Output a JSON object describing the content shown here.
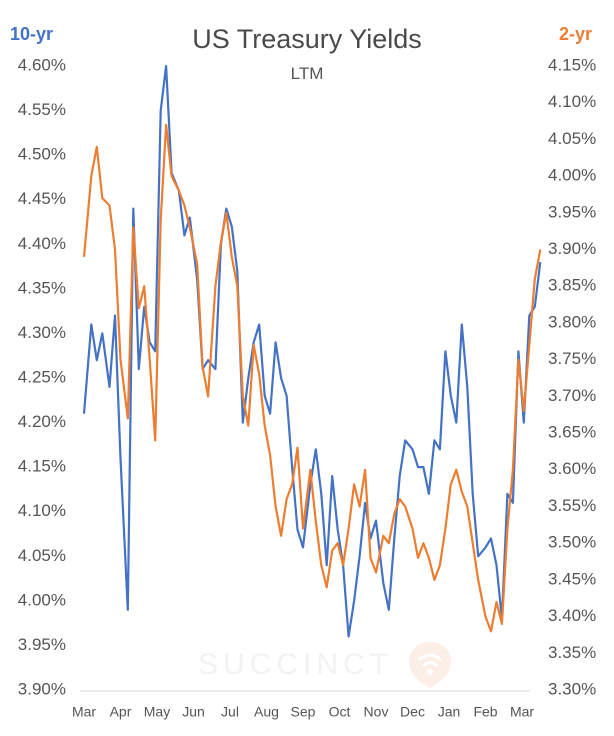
{
  "header": {
    "title": "US Treasury Yields",
    "subtitle": "LTM",
    "left_series_label": "10-yr",
    "right_series_label": "2-yr"
  },
  "watermark": {
    "text": "SUCCINCT"
  },
  "colors": {
    "ten_year": "#4472c4",
    "two_year": "#ed7d31",
    "axis_text": "#555555",
    "baseline": "#d9d9d9"
  },
  "chart_data": {
    "type": "line",
    "title": "US Treasury Yields",
    "subtitle": "LTM",
    "x_labels": [
      "Mar",
      "Apr",
      "May",
      "Jun",
      "Jul",
      "Aug",
      "Sep",
      "Oct",
      "Nov",
      "Dec",
      "Jan",
      "Feb",
      "Mar"
    ],
    "left_axis": {
      "label": "10-yr",
      "ylim": [
        3.9,
        4.6
      ],
      "ticks": [
        "4.60%",
        "4.55%",
        "4.50%",
        "4.45%",
        "4.40%",
        "4.35%",
        "4.30%",
        "4.25%",
        "4.20%",
        "4.15%",
        "4.10%",
        "4.05%",
        "4.00%",
        "3.95%",
        "3.90%"
      ]
    },
    "right_axis": {
      "label": "2-yr",
      "ylim": [
        3.3,
        4.15
      ],
      "ticks": [
        "4.15%",
        "4.10%",
        "4.05%",
        "4.00%",
        "3.95%",
        "3.90%",
        "3.85%",
        "3.80%",
        "3.75%",
        "3.70%",
        "3.65%",
        "3.60%",
        "3.55%",
        "3.50%",
        "3.45%",
        "3.40%",
        "3.35%",
        "3.30%"
      ]
    },
    "grid": false,
    "series": [
      {
        "name": "10-yr",
        "axis": "left",
        "color": "#4472c4",
        "x": [
          0,
          0.2,
          0.35,
          0.5,
          0.7,
          0.85,
          1.0,
          1.2,
          1.35,
          1.5,
          1.65,
          1.8,
          1.95,
          2.1,
          2.25,
          2.4,
          2.6,
          2.75,
          2.9,
          3.1,
          3.25,
          3.4,
          3.6,
          3.75,
          3.9,
          4.05,
          4.2,
          4.35,
          4.5,
          4.65,
          4.8,
          4.95,
          5.1,
          5.25,
          5.4,
          5.55,
          5.7,
          5.85,
          6.0,
          6.2,
          6.35,
          6.5,
          6.65,
          6.8,
          6.95,
          7.1,
          7.25,
          7.4,
          7.55,
          7.7,
          7.85,
          8.0,
          8.2,
          8.35,
          8.5,
          8.65,
          8.8,
          9.0,
          9.15,
          9.3,
          9.45,
          9.6,
          9.75,
          9.9,
          10.05,
          10.2,
          10.35,
          10.5,
          10.65,
          10.8,
          11.0,
          11.15,
          11.3,
          11.45,
          11.6,
          11.75,
          11.9,
          12.05,
          12.2,
          12.35,
          12.5
        ],
        "values": [
          4.21,
          4.31,
          4.27,
          4.3,
          4.24,
          4.32,
          4.16,
          3.99,
          4.44,
          4.26,
          4.33,
          4.29,
          4.28,
          4.55,
          4.6,
          4.48,
          4.46,
          4.41,
          4.43,
          4.36,
          4.26,
          4.27,
          4.26,
          4.4,
          4.44,
          4.42,
          4.37,
          4.2,
          4.25,
          4.29,
          4.31,
          4.23,
          4.21,
          4.29,
          4.25,
          4.23,
          4.15,
          4.08,
          4.06,
          4.13,
          4.17,
          4.12,
          4.04,
          4.14,
          4.08,
          4.04,
          3.96,
          4.0,
          4.05,
          4.11,
          4.07,
          4.09,
          4.02,
          3.99,
          4.07,
          4.14,
          4.18,
          4.17,
          4.15,
          4.15,
          4.12,
          4.18,
          4.17,
          4.28,
          4.23,
          4.2,
          4.31,
          4.24,
          4.12,
          4.05,
          4.06,
          4.07,
          4.04,
          3.98,
          4.12,
          4.11,
          4.28,
          4.2,
          4.32,
          4.33,
          4.38
        ]
      },
      {
        "name": "2-yr",
        "axis": "right",
        "color": "#ed7d31",
        "x": [
          0,
          0.2,
          0.35,
          0.5,
          0.7,
          0.85,
          1.0,
          1.2,
          1.35,
          1.5,
          1.65,
          1.8,
          1.95,
          2.1,
          2.25,
          2.4,
          2.6,
          2.75,
          2.9,
          3.1,
          3.25,
          3.4,
          3.6,
          3.75,
          3.9,
          4.05,
          4.2,
          4.35,
          4.5,
          4.65,
          4.8,
          4.95,
          5.1,
          5.25,
          5.4,
          5.55,
          5.7,
          5.85,
          6.0,
          6.2,
          6.35,
          6.5,
          6.65,
          6.8,
          6.95,
          7.1,
          7.25,
          7.4,
          7.55,
          7.7,
          7.85,
          8.0,
          8.2,
          8.35,
          8.5,
          8.65,
          8.8,
          9.0,
          9.15,
          9.3,
          9.45,
          9.6,
          9.75,
          9.9,
          10.05,
          10.2,
          10.35,
          10.5,
          10.65,
          10.8,
          11.0,
          11.15,
          11.3,
          11.45,
          11.6,
          11.75,
          11.9,
          12.05,
          12.2,
          12.35,
          12.5
        ],
        "values": [
          3.89,
          4.0,
          4.04,
          3.97,
          3.96,
          3.9,
          3.75,
          3.67,
          3.93,
          3.82,
          3.85,
          3.75,
          3.64,
          3.94,
          4.07,
          4.0,
          3.98,
          3.96,
          3.93,
          3.88,
          3.74,
          3.7,
          3.85,
          3.91,
          3.95,
          3.89,
          3.85,
          3.7,
          3.66,
          3.77,
          3.73,
          3.66,
          3.62,
          3.55,
          3.51,
          3.56,
          3.58,
          3.63,
          3.52,
          3.6,
          3.53,
          3.47,
          3.44,
          3.49,
          3.5,
          3.47,
          3.52,
          3.58,
          3.55,
          3.6,
          3.48,
          3.46,
          3.51,
          3.5,
          3.54,
          3.56,
          3.55,
          3.52,
          3.48,
          3.5,
          3.48,
          3.45,
          3.47,
          3.52,
          3.58,
          3.6,
          3.57,
          3.55,
          3.5,
          3.45,
          3.4,
          3.38,
          3.42,
          3.39,
          3.52,
          3.6,
          3.75,
          3.68,
          3.77,
          3.86,
          3.9
        ]
      }
    ]
  }
}
